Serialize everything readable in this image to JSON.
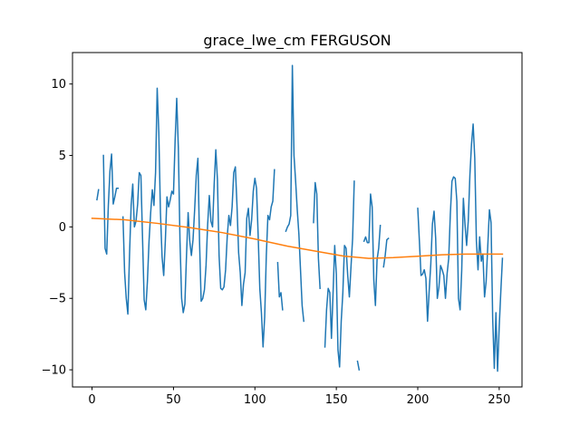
{
  "chart_data": {
    "type": "line",
    "title": "grace_lwe_cm FERGUSON",
    "xlabel": "",
    "ylabel": "",
    "xlim": [
      -12,
      264
    ],
    "ylim": [
      -11.2,
      12.2
    ],
    "xticks": [
      0,
      50,
      100,
      150,
      200,
      250
    ],
    "yticks": [
      -10,
      -5,
      0,
      5,
      10
    ],
    "grid": false,
    "legend": "none",
    "series": [
      {
        "color": "#1f77b4",
        "points": [
          [
            3,
            1.9
          ],
          [
            4,
            2.6
          ],
          [
            5,
            null
          ],
          [
            6,
            null
          ],
          [
            7,
            5.0
          ],
          [
            8,
            -1.5
          ],
          [
            9,
            -1.9
          ],
          [
            10,
            1.5
          ],
          [
            11,
            3.9
          ],
          [
            12,
            5.1
          ],
          [
            13,
            1.6
          ],
          [
            14,
            2.1
          ],
          [
            15,
            2.7
          ],
          [
            16,
            2.7
          ],
          [
            17,
            null
          ],
          [
            18,
            null
          ],
          [
            19,
            0.7
          ],
          [
            20,
            -3.2
          ],
          [
            21,
            -5.0
          ],
          [
            22,
            -6.1
          ],
          [
            23,
            -2.0
          ],
          [
            24,
            1.5
          ],
          [
            25,
            3.0
          ],
          [
            26,
            0.0
          ],
          [
            27,
            0.4
          ],
          [
            28,
            1.6
          ],
          [
            29,
            3.8
          ],
          [
            30,
            3.6
          ],
          [
            31,
            -0.8
          ],
          [
            32,
            -5.1
          ],
          [
            33,
            -5.8
          ],
          [
            34,
            -3.8
          ],
          [
            35,
            -1.0
          ],
          [
            36,
            1.0
          ],
          [
            37,
            2.6
          ],
          [
            38,
            1.5
          ],
          [
            39,
            3.8
          ],
          [
            40,
            9.7
          ],
          [
            41,
            6.6
          ],
          [
            42,
            1.0
          ],
          [
            43,
            -2.1
          ],
          [
            44,
            -3.4
          ],
          [
            45,
            -1.0
          ],
          [
            46,
            2.1
          ],
          [
            47,
            1.4
          ],
          [
            48,
            1.9
          ],
          [
            49,
            2.5
          ],
          [
            50,
            2.3
          ],
          [
            51,
            6.0
          ],
          [
            52,
            9.0
          ],
          [
            53,
            5.5
          ],
          [
            54,
            -1.0
          ],
          [
            55,
            -5.0
          ],
          [
            56,
            -6.0
          ],
          [
            57,
            -5.4
          ],
          [
            58,
            -2.0
          ],
          [
            59,
            1.0
          ],
          [
            60,
            -1.0
          ],
          [
            61,
            -2.0
          ],
          [
            62,
            -0.9
          ],
          [
            63,
            1.2
          ],
          [
            64,
            3.6
          ],
          [
            65,
            4.8
          ],
          [
            66,
            -1.0
          ],
          [
            67,
            -5.2
          ],
          [
            68,
            -5.0
          ],
          [
            69,
            -4.4
          ],
          [
            70,
            -2.7
          ],
          [
            71,
            0.2
          ],
          [
            72,
            2.2
          ],
          [
            73,
            0.4
          ],
          [
            74,
            0.0
          ],
          [
            75,
            3.0
          ],
          [
            76,
            5.4
          ],
          [
            77,
            3.3
          ],
          [
            78,
            -2.0
          ],
          [
            79,
            -4.3
          ],
          [
            80,
            -4.4
          ],
          [
            81,
            -4.2
          ],
          [
            82,
            -3.0
          ],
          [
            83,
            -0.7
          ],
          [
            84,
            0.8
          ],
          [
            85,
            0.1
          ],
          [
            86,
            1.4
          ],
          [
            87,
            3.8
          ],
          [
            88,
            4.2
          ],
          [
            89,
            1.5
          ],
          [
            90,
            -1.8
          ],
          [
            91,
            -3.2
          ],
          [
            92,
            -5.5
          ],
          [
            93,
            -4.0
          ],
          [
            94,
            -3.2
          ],
          [
            95,
            0.6
          ],
          [
            96,
            1.3
          ],
          [
            97,
            -0.6
          ],
          [
            98,
            0.5
          ],
          [
            99,
            2.5
          ],
          [
            100,
            3.4
          ],
          [
            101,
            2.7
          ],
          [
            102,
            -0.6
          ],
          [
            103,
            -4.3
          ],
          [
            104,
            -6.0
          ],
          [
            105,
            -8.4
          ],
          [
            106,
            -6.3
          ],
          [
            107,
            -2.0
          ],
          [
            108,
            0.8
          ],
          [
            109,
            0.5
          ],
          [
            110,
            1.4
          ],
          [
            111,
            1.8
          ],
          [
            112,
            4.0
          ],
          [
            113,
            null
          ],
          [
            114,
            -2.5
          ],
          [
            115,
            -4.9
          ],
          [
            116,
            -4.6
          ],
          [
            117,
            -5.8
          ],
          [
            118,
            null
          ],
          [
            119,
            -0.3
          ],
          [
            120,
            0.0
          ],
          [
            121,
            0.2
          ],
          [
            122,
            0.8
          ],
          [
            123,
            11.3
          ],
          [
            124,
            5.0
          ],
          [
            125,
            3.2
          ],
          [
            126,
            1.2
          ],
          [
            127,
            -0.5
          ],
          [
            128,
            -3.0
          ],
          [
            129,
            -5.5
          ],
          [
            130,
            -6.6
          ],
          [
            131,
            null
          ],
          [
            132,
            null
          ],
          [
            133,
            null
          ],
          [
            134,
            null
          ],
          [
            135,
            null
          ],
          [
            136,
            0.3
          ],
          [
            137,
            3.1
          ],
          [
            138,
            2.3
          ],
          [
            139,
            -2.2
          ],
          [
            140,
            -4.3
          ],
          [
            141,
            null
          ],
          [
            142,
            null
          ],
          [
            143,
            -8.4
          ],
          [
            144,
            -5.8
          ],
          [
            145,
            -4.3
          ],
          [
            146,
            -4.6
          ],
          [
            147,
            -7.8
          ],
          [
            148,
            -4.6
          ],
          [
            149,
            -1.3
          ],
          [
            150,
            -3.3
          ],
          [
            151,
            -8.6
          ],
          [
            152,
            -9.8
          ],
          [
            153,
            -6.6
          ],
          [
            154,
            -4.6
          ],
          [
            155,
            -1.3
          ],
          [
            156,
            -1.5
          ],
          [
            157,
            -3.4
          ],
          [
            158,
            -4.9
          ],
          [
            159,
            -2.8
          ],
          [
            160,
            -0.8
          ],
          [
            161,
            3.2
          ],
          [
            162,
            null
          ],
          [
            163,
            -9.4
          ],
          [
            164,
            -10.0
          ],
          [
            165,
            null
          ],
          [
            166,
            null
          ],
          [
            167,
            -1.0
          ],
          [
            168,
            -0.7
          ],
          [
            169,
            -1.1
          ],
          [
            170,
            -1.1
          ],
          [
            171,
            2.3
          ],
          [
            172,
            1.4
          ],
          [
            173,
            -3.7
          ],
          [
            174,
            -5.5
          ],
          [
            175,
            -2.3
          ],
          [
            176,
            -1.5
          ],
          [
            177,
            0.1
          ],
          [
            178,
            null
          ],
          [
            179,
            -2.8
          ],
          [
            180,
            -2.0
          ],
          [
            181,
            -0.9
          ],
          [
            182,
            -0.8
          ],
          [
            183,
            null
          ],
          [
            184,
            null
          ],
          [
            185,
            null
          ],
          [
            186,
            null
          ],
          [
            187,
            null
          ],
          [
            188,
            null
          ],
          [
            189,
            null
          ],
          [
            190,
            null
          ],
          [
            191,
            null
          ],
          [
            192,
            null
          ],
          [
            193,
            null
          ],
          [
            194,
            null
          ],
          [
            195,
            null
          ],
          [
            196,
            null
          ],
          [
            197,
            null
          ],
          [
            198,
            null
          ],
          [
            199,
            null
          ],
          [
            200,
            1.3
          ],
          [
            201,
            -1.0
          ],
          [
            202,
            -3.4
          ],
          [
            203,
            -3.3
          ],
          [
            204,
            -3.0
          ],
          [
            205,
            -3.6
          ],
          [
            206,
            -6.6
          ],
          [
            207,
            -4.5
          ],
          [
            208,
            -2.6
          ],
          [
            209,
            0.2
          ],
          [
            210,
            1.1
          ],
          [
            211,
            -0.8
          ],
          [
            212,
            -5.0
          ],
          [
            213,
            -4.2
          ],
          [
            214,
            -2.7
          ],
          [
            215,
            -3.0
          ],
          [
            216,
            -3.4
          ],
          [
            217,
            -5.0
          ],
          [
            218,
            -3.3
          ],
          [
            219,
            -2.2
          ],
          [
            220,
            0.9
          ],
          [
            221,
            3.2
          ],
          [
            222,
            3.5
          ],
          [
            223,
            3.4
          ],
          [
            224,
            1.8
          ],
          [
            225,
            -5.0
          ],
          [
            226,
            -5.8
          ],
          [
            227,
            -3.0
          ],
          [
            228,
            2.0
          ],
          [
            229,
            0.2
          ],
          [
            230,
            -1.3
          ],
          [
            231,
            0.4
          ],
          [
            232,
            3.6
          ],
          [
            233,
            5.8
          ],
          [
            234,
            7.2
          ],
          [
            235,
            4.8
          ],
          [
            236,
            -1.0
          ],
          [
            237,
            -3.0
          ],
          [
            238,
            -0.7
          ],
          [
            239,
            -2.4
          ],
          [
            240,
            -1.9
          ],
          [
            241,
            -4.9
          ],
          [
            242,
            -3.8
          ],
          [
            243,
            -1.3
          ],
          [
            244,
            1.2
          ],
          [
            245,
            0.3
          ],
          [
            246,
            -6.4
          ],
          [
            247,
            -9.9
          ],
          [
            248,
            -6.0
          ],
          [
            249,
            -10.1
          ],
          [
            250,
            -7.0
          ],
          [
            251,
            -4.5
          ],
          [
            252,
            -2.2
          ]
        ]
      },
      {
        "color": "#ff7f0e",
        "points": [
          [
            0,
            0.6
          ],
          [
            20,
            0.5
          ],
          [
            40,
            0.25
          ],
          [
            60,
            -0.05
          ],
          [
            80,
            -0.4
          ],
          [
            100,
            -0.85
          ],
          [
            120,
            -1.35
          ],
          [
            140,
            -1.75
          ],
          [
            155,
            -2.05
          ],
          [
            170,
            -2.2
          ],
          [
            185,
            -2.15
          ],
          [
            200,
            -2.05
          ],
          [
            215,
            -1.95
          ],
          [
            230,
            -1.9
          ],
          [
            245,
            -1.9
          ],
          [
            252,
            -1.9
          ]
        ]
      }
    ]
  }
}
